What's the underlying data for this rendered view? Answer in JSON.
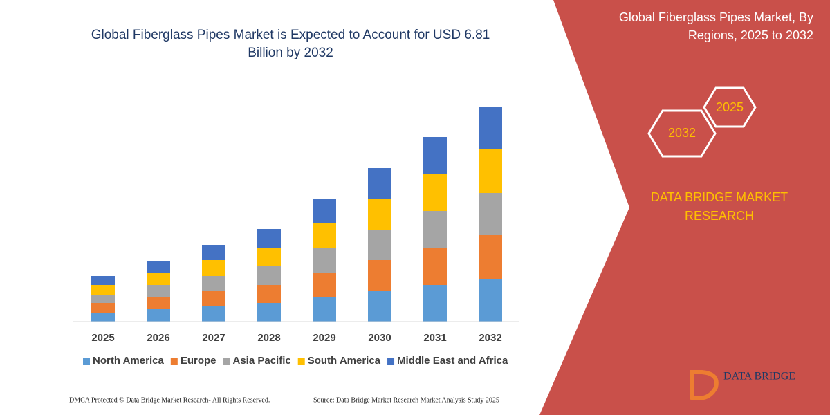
{
  "chart_data": {
    "type": "stacked-bar",
    "title": "Global Fiberglass Pipes Market is Expected to Account for USD 6.81 Billion by 2032",
    "categories": [
      "2025",
      "2026",
      "2027",
      "2028",
      "2029",
      "2030",
      "2031",
      "2032"
    ],
    "series": [
      {
        "name": "North America",
        "color": "#5b9bd5",
        "values": [
          13,
          18,
          22,
          27,
          35,
          44,
          53,
          62
        ]
      },
      {
        "name": "Europe",
        "color": "#ed7d31",
        "values": [
          14,
          17,
          22,
          26,
          36,
          45,
          54,
          63
        ]
      },
      {
        "name": "Asia Pacific",
        "color": "#a5a5a5",
        "values": [
          12,
          18,
          22,
          27,
          36,
          44,
          53,
          61
        ]
      },
      {
        "name": "South America",
        "color": "#ffc000",
        "values": [
          14,
          17,
          23,
          27,
          35,
          44,
          53,
          63
        ]
      },
      {
        "name": "Middle East and Africa",
        "color": "#4472c4",
        "values": [
          13,
          18,
          22,
          27,
          35,
          45,
          54,
          62
        ]
      }
    ]
  },
  "panel": {
    "title": "Global Fiberglass Pipes Market, By Regions, 2025 to 2032",
    "hex_1": "2025",
    "hex_2": "2032",
    "brand": "DATA BRIDGE MARKET RESEARCH",
    "logo": "DATA BRIDGE"
  },
  "footer": {
    "left": "DMCA Protected © Data Bridge Market Research-  All Rights Reserved.",
    "right": "Source: Data Bridge Market Research  Market Analysis Study 2025"
  }
}
